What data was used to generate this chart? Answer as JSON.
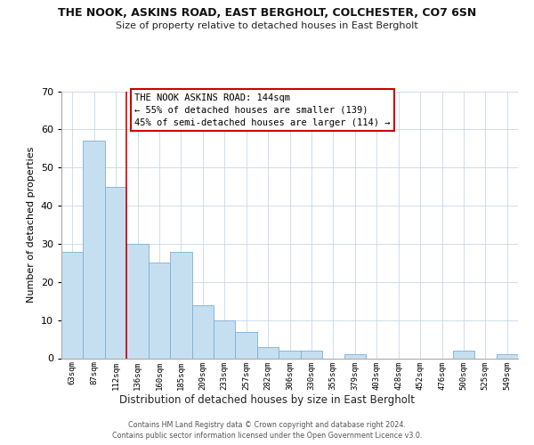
{
  "title": "THE NOOK, ASKINS ROAD, EAST BERGHOLT, COLCHESTER, CO7 6SN",
  "subtitle": "Size of property relative to detached houses in East Bergholt",
  "xlabel": "Distribution of detached houses by size in East Bergholt",
  "ylabel": "Number of detached properties",
  "bar_color": "#c6dff0",
  "bar_edge_color": "#7bafd4",
  "categories": [
    "63sqm",
    "87sqm",
    "112sqm",
    "136sqm",
    "160sqm",
    "185sqm",
    "209sqm",
    "233sqm",
    "257sqm",
    "282sqm",
    "306sqm",
    "330sqm",
    "355sqm",
    "379sqm",
    "403sqm",
    "428sqm",
    "452sqm",
    "476sqm",
    "500sqm",
    "525sqm",
    "549sqm"
  ],
  "values": [
    28,
    57,
    45,
    30,
    25,
    28,
    14,
    10,
    7,
    3,
    2,
    2,
    0,
    1,
    0,
    0,
    0,
    0,
    2,
    0,
    1
  ],
  "ylim": [
    0,
    70
  ],
  "yticks": [
    0,
    10,
    20,
    30,
    40,
    50,
    60,
    70
  ],
  "vline_index": 2.5,
  "vline_color": "#cc0000",
  "annotation_text": "THE NOOK ASKINS ROAD: 144sqm\n← 55% of detached houses are smaller (139)\n45% of semi-detached houses are larger (114) →",
  "annotation_box_color": "#ffffff",
  "annotation_box_edge": "#cc0000",
  "footer_line1": "Contains HM Land Registry data © Crown copyright and database right 2024.",
  "footer_line2": "Contains public sector information licensed under the Open Government Licence v3.0.",
  "background_color": "#ffffff",
  "grid_color": "#c8d8e8"
}
